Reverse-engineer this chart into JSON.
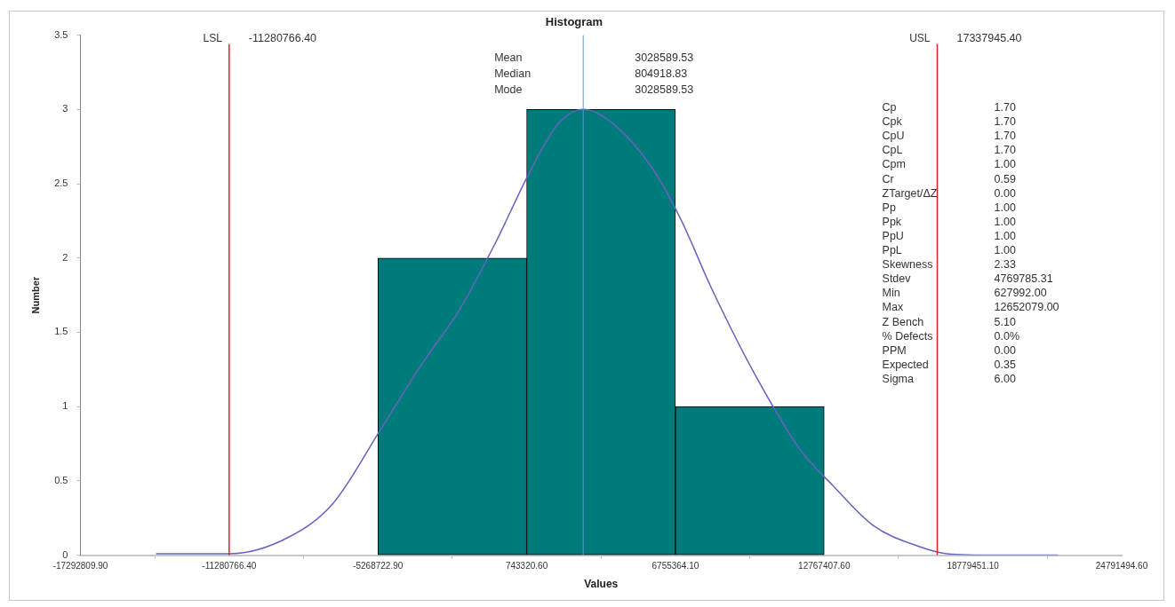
{
  "chart_data": {
    "type": "histogram",
    "title": "Histogram",
    "xlabel": "Values",
    "ylabel": "Number",
    "series": [
      {
        "type": "histogram",
        "bins": [
          -5268722.9,
          743320.6,
          6755364.1,
          12767407.6
        ],
        "values": [
          2,
          3,
          1
        ],
        "color": "#007b7b"
      },
      {
        "type": "line",
        "color": "#6464c0",
        "x": [
          -14237600,
          -11255000,
          -8891000,
          -7073000,
          -5145000,
          -3435000,
          -1980000,
          -525000,
          930000,
          2000000,
          3030000,
          4266000,
          5840000,
          7003000,
          8203000,
          10022000,
          11840000,
          13114000,
          14750000,
          16570000,
          17730000,
          19840000,
          22207000
        ],
        "values": [
          0.01,
          0.01,
          0.12,
          0.35,
          0.85,
          1.3,
          1.65,
          2.1,
          2.6,
          2.9,
          3.0,
          2.9,
          2.6,
          2.25,
          1.8,
          1.2,
          0.7,
          0.47,
          0.2,
          0.06,
          0.01,
          0,
          0
        ]
      }
    ],
    "marker": "none",
    "xlim": [
      -17292809.9,
      24791494.6
    ],
    "xticks": [
      {
        "value": -17292809.9,
        "label": "-17292809.90"
      },
      {
        "value": -11280766.4,
        "label": "-11280766.40"
      },
      {
        "value": -5268722.9,
        "label": "-5268722.90"
      },
      {
        "value": 743320.6,
        "label": "743320.60"
      },
      {
        "value": 6755364.1,
        "label": "6755364.10"
      },
      {
        "value": 12767407.6,
        "label": "12767407.60"
      },
      {
        "value": 18779451.1,
        "label": "18779451.10"
      },
      {
        "value": 24791494.6,
        "label": "24791494.60"
      }
    ],
    "ylim": [
      0,
      3.5
    ],
    "yticks": [
      0,
      0.5,
      1,
      1.5,
      2,
      2.5,
      3,
      3.5
    ],
    "grid": false,
    "legend": false,
    "ref_lines": [
      {
        "axis": "x",
        "value": -11280766.4,
        "label": "LSL",
        "color": "#e02020"
      },
      {
        "axis": "x",
        "value": 17337945.4,
        "label": "USL",
        "color": "#e02020"
      },
      {
        "axis": "x",
        "value": 3028589.53,
        "label": null,
        "color": "#5b9bd5"
      }
    ],
    "annotations": [
      "-11280766.40",
      "17337945.40",
      "Mean\t3028589.53",
      "Median\t804918.83",
      "Mode\t3028589.53",
      "Cp\t1.70",
      "Cpk\t1.70",
      "CpU\t1.70",
      "CpL\t1.70",
      "Cpm\t1.00",
      "Cr\t0.59",
      "ZTarget/ΔZ\t0.00",
      "Pp\t1.00",
      "Ppk\t1.00",
      "PpU\t1.00",
      "PpL\t1.00",
      "Skewness\t2.33",
      "Stdev\t4769785.31",
      "Min\t627992.00",
      "Max\t12652079.00",
      "Z Bench\t5.10",
      "% Defects\t0.0%",
      "PPM\t0.00",
      "Expected\t0.35",
      "Sigma\t6.00"
    ]
  }
}
